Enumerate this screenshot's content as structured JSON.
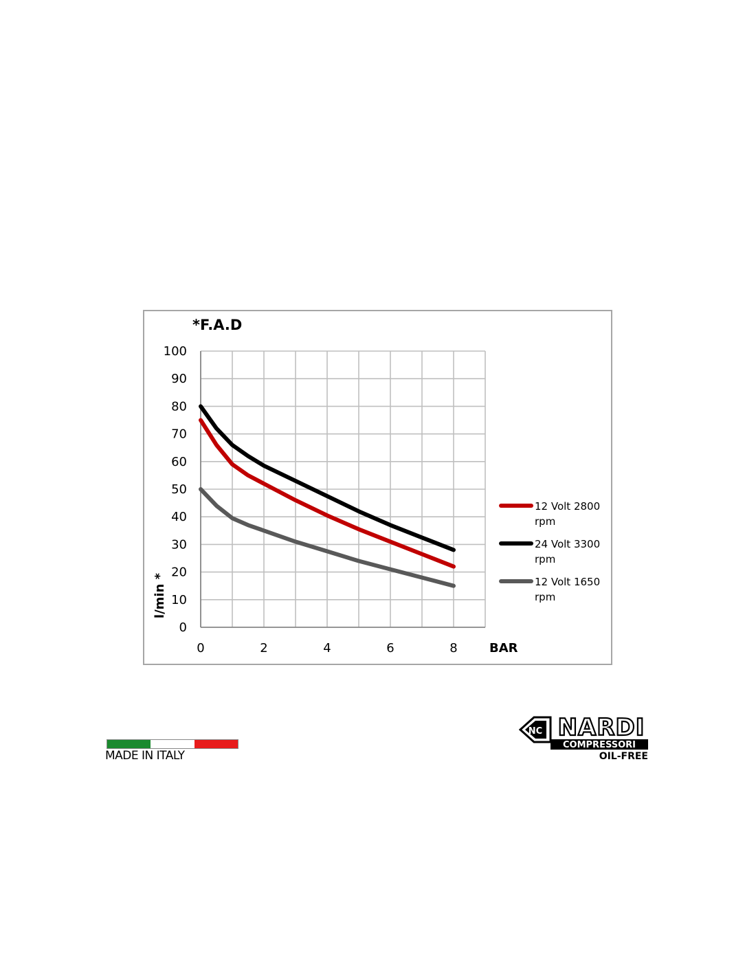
{
  "chart_data": {
    "type": "line",
    "title": "*F.A.D",
    "xlabel": "BAR",
    "ylabel": "l/min *",
    "xlim": [
      0,
      9
    ],
    "ylim": [
      0,
      100
    ],
    "x_ticks": [
      0,
      2,
      4,
      6,
      8
    ],
    "y_ticks": [
      0,
      10,
      20,
      30,
      40,
      50,
      60,
      70,
      80,
      90,
      100
    ],
    "grid": true,
    "legend_position": "right",
    "series": [
      {
        "name": "12 Volt 2800 rpm",
        "color": "#c00000",
        "x": [
          0,
          0.5,
          1,
          1.5,
          2,
          3,
          4,
          5,
          6,
          7,
          8
        ],
        "y": [
          75,
          66,
          59,
          55,
          52,
          46,
          40.5,
          35.5,
          31,
          26.5,
          22
        ]
      },
      {
        "name": "24 Volt 3300 rpm",
        "color": "#000000",
        "x": [
          0,
          0.5,
          1,
          1.5,
          2,
          3,
          4,
          5,
          6,
          7,
          8
        ],
        "y": [
          80,
          72,
          66,
          62,
          58.5,
          53,
          47.5,
          42,
          37,
          32.5,
          28
        ]
      },
      {
        "name": "12 Volt 1650 rpm",
        "color": "#595959",
        "x": [
          0,
          0.5,
          1,
          1.5,
          2,
          3,
          4,
          5,
          6,
          7,
          8
        ],
        "y": [
          50,
          44,
          39.5,
          37,
          35,
          31,
          27.5,
          24,
          21,
          18,
          15
        ]
      }
    ]
  },
  "footer": {
    "made_in": "MADE IN ITALY",
    "flag_colors": [
      "#1a8a2e",
      "#ffffff",
      "#e81b1b"
    ],
    "brand_name": "NARDI",
    "brand_sub": "COMPRESSORI",
    "brand_tag": "OIL-FREE"
  }
}
